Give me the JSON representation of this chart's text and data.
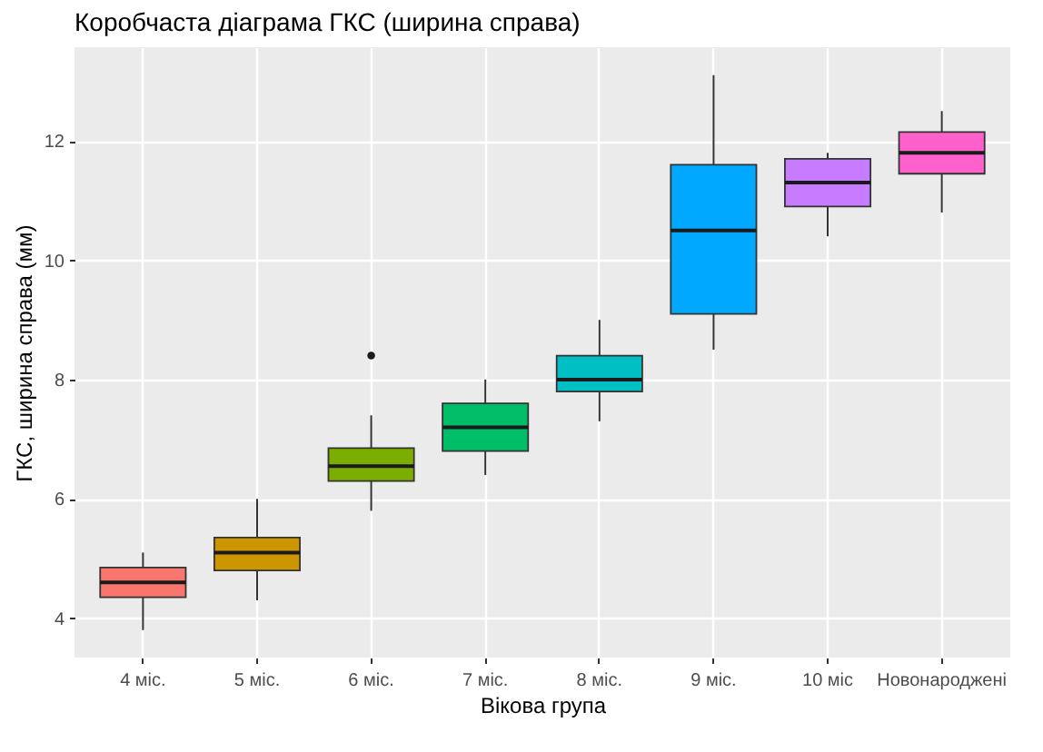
{
  "chart_data": {
    "type": "box",
    "title": "Коробчаста діаграма ГКС (ширина справа)",
    "xlabel": "Вікова група",
    "ylabel": "ГКС, ширина справа (мм)",
    "categories": [
      "4 міс.",
      "5 міс.",
      "6 міс.",
      "7 міс.",
      "8 міс.",
      "9 міс.",
      "10 міс",
      "Новонароджені"
    ],
    "colors": [
      "#f8766d",
      "#cd9600",
      "#7cae00",
      "#00be67",
      "#00bfc4",
      "#00a9ff",
      "#c77cff",
      "#ff61cc"
    ],
    "boxes": [
      {
        "low": 3.8,
        "q1": 4.35,
        "median": 4.6,
        "q3": 4.85,
        "high": 5.1
      },
      {
        "low": 4.3,
        "q1": 4.8,
        "median": 5.1,
        "q3": 5.35,
        "high": 6.0
      },
      {
        "low": 5.8,
        "q1": 6.3,
        "median": 6.55,
        "q3": 6.85,
        "high": 7.4,
        "outliers": [
          8.4
        ]
      },
      {
        "low": 6.4,
        "q1": 6.8,
        "median": 7.2,
        "q3": 7.6,
        "high": 8.0
      },
      {
        "low": 7.3,
        "q1": 7.8,
        "median": 8.0,
        "q3": 8.4,
        "high": 9.0
      },
      {
        "low": 8.5,
        "q1": 9.1,
        "median": 10.5,
        "q3": 11.6,
        "high": 13.1
      },
      {
        "low": 10.4,
        "q1": 10.9,
        "median": 11.3,
        "q3": 11.7,
        "high": 11.8
      },
      {
        "low": 10.8,
        "q1": 11.45,
        "median": 11.8,
        "q3": 12.15,
        "high": 12.5
      }
    ],
    "ylim": [
      3.34,
      13.57
    ],
    "yticks": [
      4,
      6,
      8,
      10,
      12
    ],
    "grid": true
  }
}
